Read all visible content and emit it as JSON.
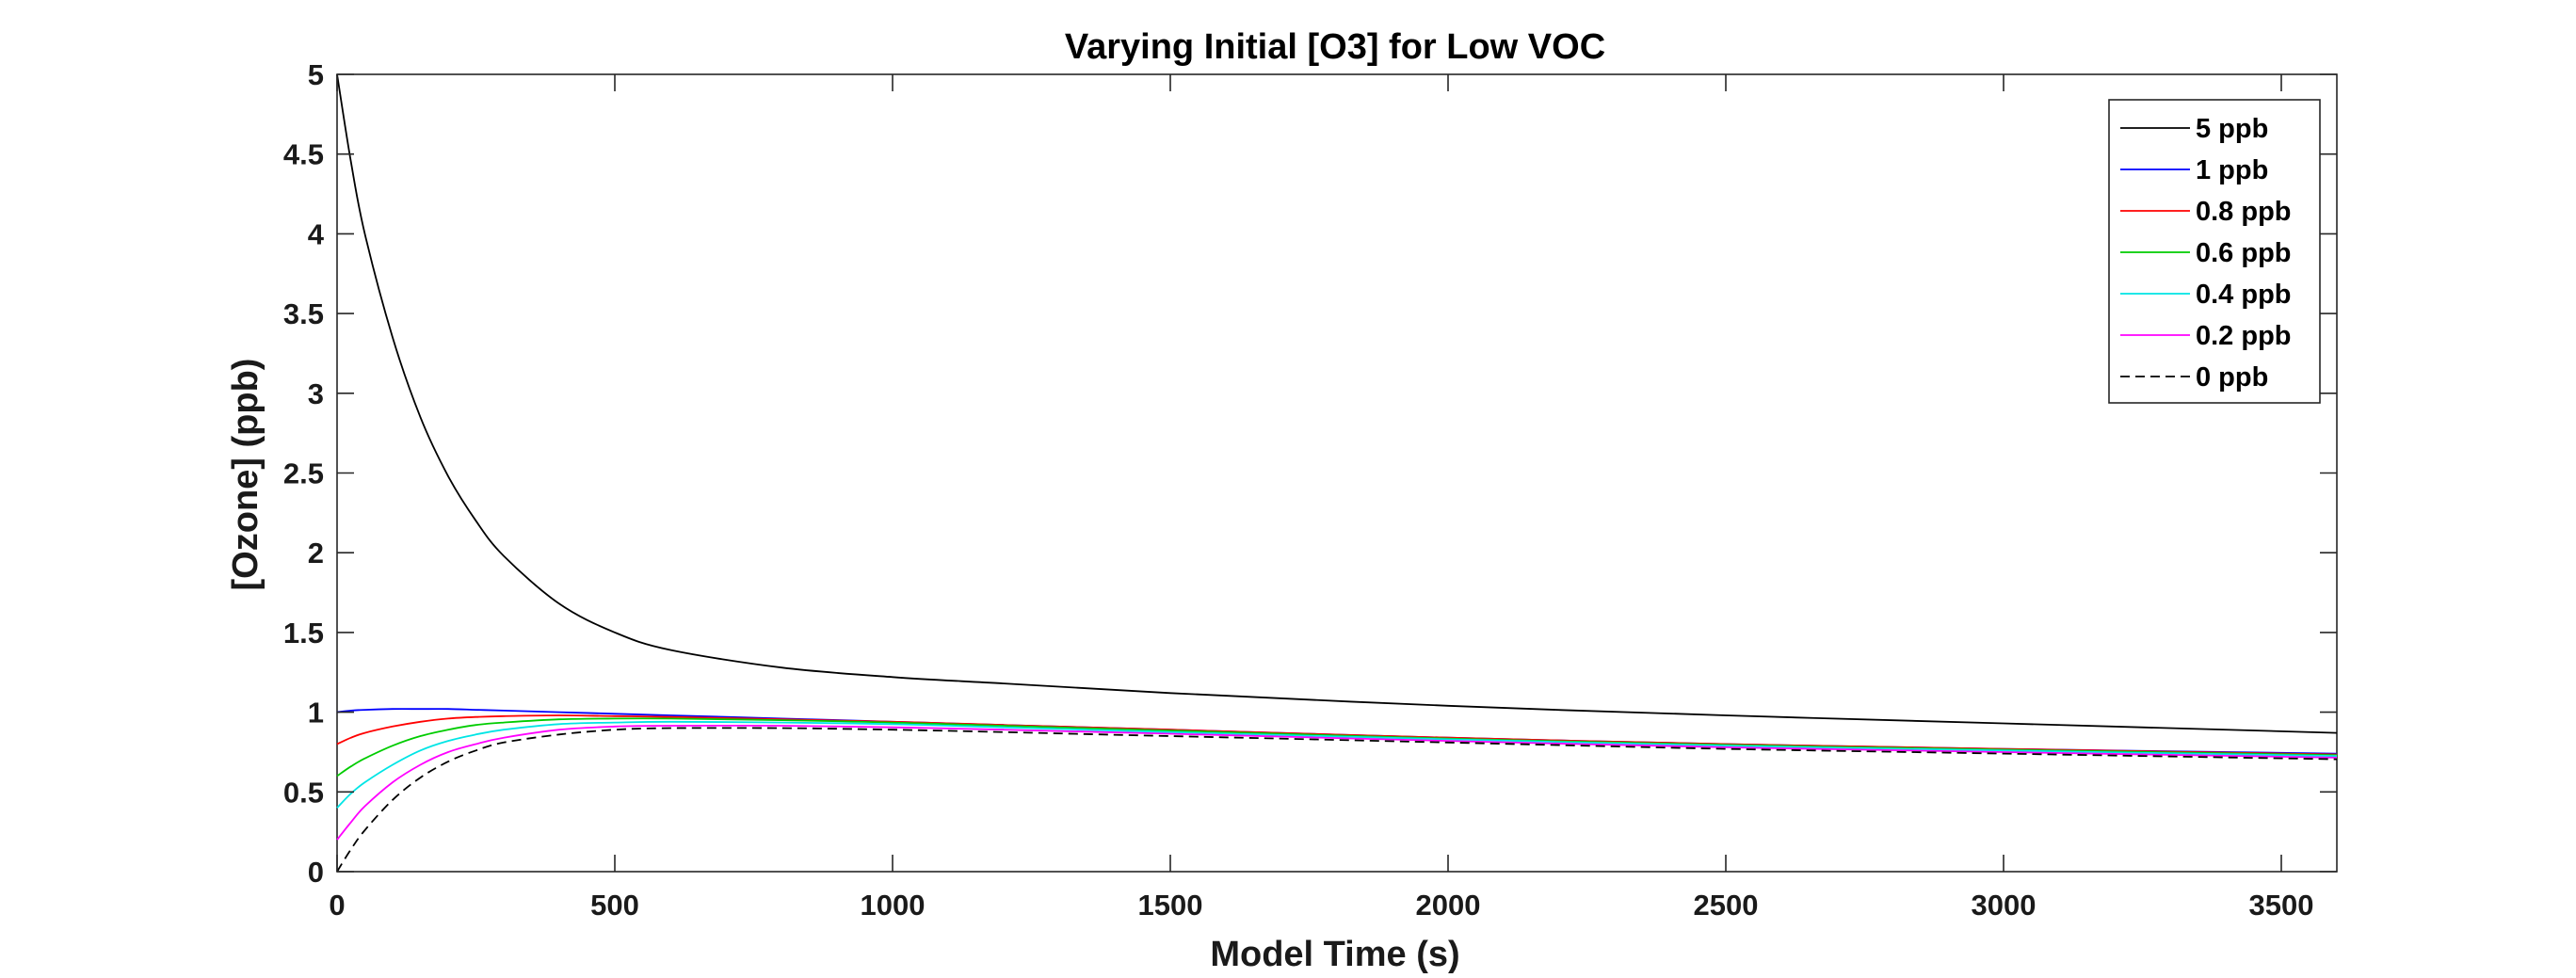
{
  "chart_data": {
    "type": "line",
    "title": "Varying Initial [O3] for Low VOC",
    "xlabel": "Model Time (s)",
    "ylabel": "[Ozone] (ppb)",
    "xlim": [
      0,
      3600
    ],
    "ylim": [
      0,
      5
    ],
    "x_ticks": [
      "0",
      "500",
      "1000",
      "1500",
      "2000",
      "2500",
      "3000",
      "3500"
    ],
    "y_ticks": [
      "0",
      "0.5",
      "1",
      "1.5",
      "2",
      "2.5",
      "3",
      "3.5",
      "4",
      "4.5",
      "5"
    ],
    "grid": false,
    "legend_position": "top-right",
    "x": [
      0,
      25,
      50,
      100,
      150,
      200,
      250,
      300,
      400,
      500,
      600,
      800,
      1000,
      1200,
      1500,
      2000,
      2500,
      3000,
      3600
    ],
    "series": [
      {
        "name": "5 ppb",
        "color": "#000000",
        "dash": false,
        "values": [
          5.0,
          4.45,
          4.0,
          3.35,
          2.85,
          2.48,
          2.2,
          1.98,
          1.68,
          1.5,
          1.39,
          1.28,
          1.22,
          1.18,
          1.12,
          1.04,
          0.98,
          0.93,
          0.87
        ]
      },
      {
        "name": "1 ppb",
        "color": "#0000ff",
        "dash": false,
        "values": [
          1.0,
          1.01,
          1.015,
          1.02,
          1.02,
          1.02,
          1.015,
          1.01,
          1.0,
          0.99,
          0.98,
          0.96,
          0.94,
          0.92,
          0.89,
          0.84,
          0.8,
          0.77,
          0.74
        ]
      },
      {
        "name": "0.8 ppb",
        "color": "#ff0000",
        "dash": false,
        "values": [
          0.8,
          0.84,
          0.87,
          0.91,
          0.94,
          0.96,
          0.97,
          0.975,
          0.98,
          0.975,
          0.97,
          0.955,
          0.94,
          0.92,
          0.89,
          0.84,
          0.8,
          0.77,
          0.735
        ]
      },
      {
        "name": "0.6 ppb",
        "color": "#00cc00",
        "dash": false,
        "values": [
          0.6,
          0.66,
          0.71,
          0.79,
          0.85,
          0.89,
          0.92,
          0.935,
          0.955,
          0.96,
          0.96,
          0.95,
          0.935,
          0.915,
          0.885,
          0.835,
          0.795,
          0.765,
          0.73
        ]
      },
      {
        "name": "0.4 ppb",
        "color": "#00e5e5",
        "dash": false,
        "values": [
          0.4,
          0.49,
          0.56,
          0.67,
          0.76,
          0.82,
          0.86,
          0.89,
          0.925,
          0.935,
          0.94,
          0.935,
          0.925,
          0.905,
          0.875,
          0.83,
          0.79,
          0.76,
          0.725
        ]
      },
      {
        "name": "0.2 ppb",
        "color": "#ff00ff",
        "dash": false,
        "values": [
          0.2,
          0.31,
          0.41,
          0.56,
          0.67,
          0.75,
          0.8,
          0.84,
          0.89,
          0.91,
          0.915,
          0.915,
          0.905,
          0.89,
          0.865,
          0.82,
          0.78,
          0.75,
          0.715
        ]
      },
      {
        "name": "0 ppb",
        "color": "#000000",
        "dash": true,
        "values": [
          0.0,
          0.14,
          0.26,
          0.45,
          0.59,
          0.69,
          0.76,
          0.81,
          0.86,
          0.89,
          0.9,
          0.9,
          0.89,
          0.875,
          0.85,
          0.81,
          0.77,
          0.74,
          0.705
        ]
      }
    ]
  }
}
